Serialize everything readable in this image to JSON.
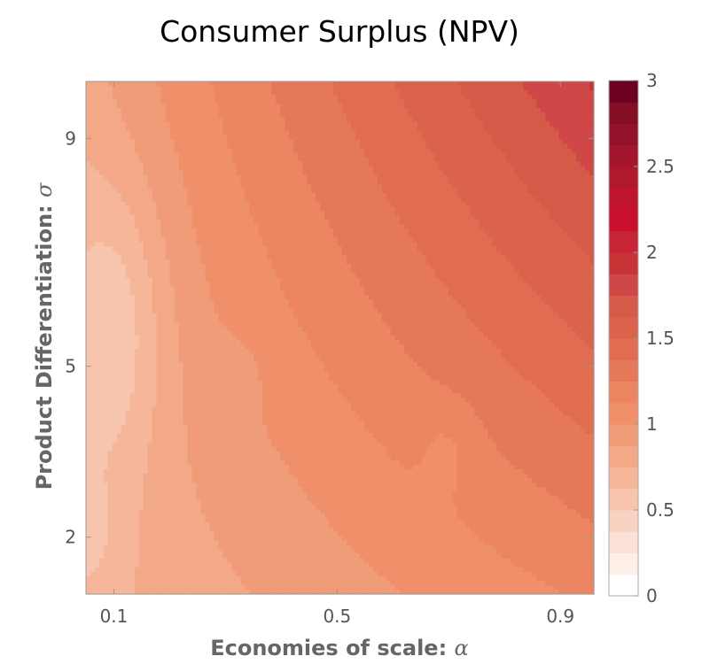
{
  "chart_data": {
    "type": "heatmap",
    "subtype": "filled-contour",
    "title": "Consumer Surplus (NPV)",
    "xlabel": {
      "text": "Economies of scale: ",
      "symbol": "α"
    },
    "ylabel": {
      "text": "Product Differentiation: ",
      "symbol": "σ"
    },
    "x_ticks": [
      "0.1",
      "0.5",
      "0.9"
    ],
    "y_ticks": [
      "2",
      "5",
      "9"
    ],
    "x_range": [
      0.05,
      0.96
    ],
    "y_range": [
      1,
      10
    ],
    "colorbar": {
      "ticks": [
        "0",
        "0.5",
        "1",
        "1.5",
        "2",
        "2.5",
        "3"
      ],
      "range": [
        0,
        3
      ],
      "bins": 24,
      "colors": [
        "#ffffff",
        "#fdeee8",
        "#fbe1d6",
        "#f9d3c2",
        "#f7c4ad",
        "#f5b69a",
        "#f3a987",
        "#f19c78",
        "#ef906b",
        "#ec8562",
        "#e6785a",
        "#e06c52",
        "#db634c",
        "#d65a48",
        "#d04747",
        "#c93336",
        "#c72435",
        "#c8102e",
        "#c0142c",
        "#b2182b",
        "#a3162b",
        "#941229",
        "#850e27",
        "#6b0021"
      ]
    },
    "grid": "off",
    "legend": "colorbar-right",
    "note": "Consumer surplus rises with both economies of scale and product differentiation; lowest (~0.5) near alpha=0.1, sigma=5; highest (~1.75) near alpha=0.9, sigma=10."
  }
}
